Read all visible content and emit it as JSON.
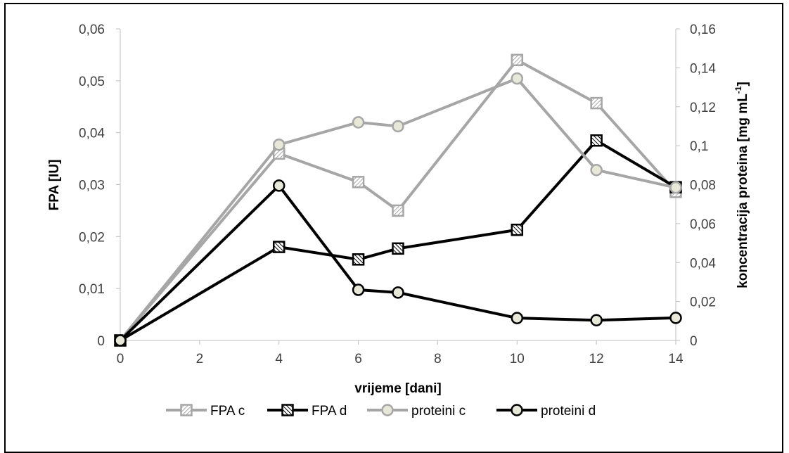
{
  "chart_data": {
    "type": "line",
    "xlabel": "vrijeme [dani]",
    "ylabel": "FPA [IU]",
    "y2label_main": "koncentracija proteina [mg mL",
    "y2label_sup": "-1",
    "y2label_end": "]",
    "xlim": [
      0,
      14
    ],
    "ylim": [
      0,
      0.06
    ],
    "y2lim": [
      0,
      0.16
    ],
    "x_ticks": [
      "0",
      "2",
      "4",
      "6",
      "8",
      "10",
      "12",
      "14"
    ],
    "y_ticks": [
      "0",
      "0,01",
      "0,02",
      "0,03",
      "0,04",
      "0,05",
      "0,06"
    ],
    "y2_ticks": [
      "0",
      "0,02",
      "0,04",
      "0,06",
      "0,08",
      "0,1",
      "0,12",
      "0,14",
      "0,16"
    ],
    "series": [
      {
        "name": "FPA c",
        "axis": "left",
        "color": "#a6a6a6",
        "marker": "square",
        "x": [
          0,
          4,
          6,
          7,
          10,
          12,
          14
        ],
        "values": [
          0,
          0.036,
          0.0305,
          0.025,
          0.054,
          0.0457,
          0.0286
        ]
      },
      {
        "name": "FPA d",
        "axis": "left",
        "color": "#000000",
        "marker": "square",
        "x": [
          0,
          4,
          6,
          7,
          10,
          12,
          14
        ],
        "values": [
          0,
          0.018,
          0.0156,
          0.0177,
          0.0213,
          0.0385,
          0.0295
        ]
      },
      {
        "name": "proteini c",
        "axis": "right",
        "color": "#a6a6a6",
        "marker": "circle",
        "x": [
          0,
          4,
          6,
          7,
          10,
          12,
          14
        ],
        "values": [
          0,
          0.1005,
          0.112,
          0.11,
          0.1345,
          0.0875,
          0.0785
        ]
      },
      {
        "name": "proteini d",
        "axis": "right",
        "color": "#000000",
        "marker": "circle",
        "x": [
          0,
          4,
          6,
          7,
          10,
          12,
          14
        ],
        "values": [
          0,
          0.0795,
          0.026,
          0.0246,
          0.0115,
          0.0104,
          0.0116
        ]
      }
    ],
    "legend_position": "bottom",
    "grid": false
  }
}
